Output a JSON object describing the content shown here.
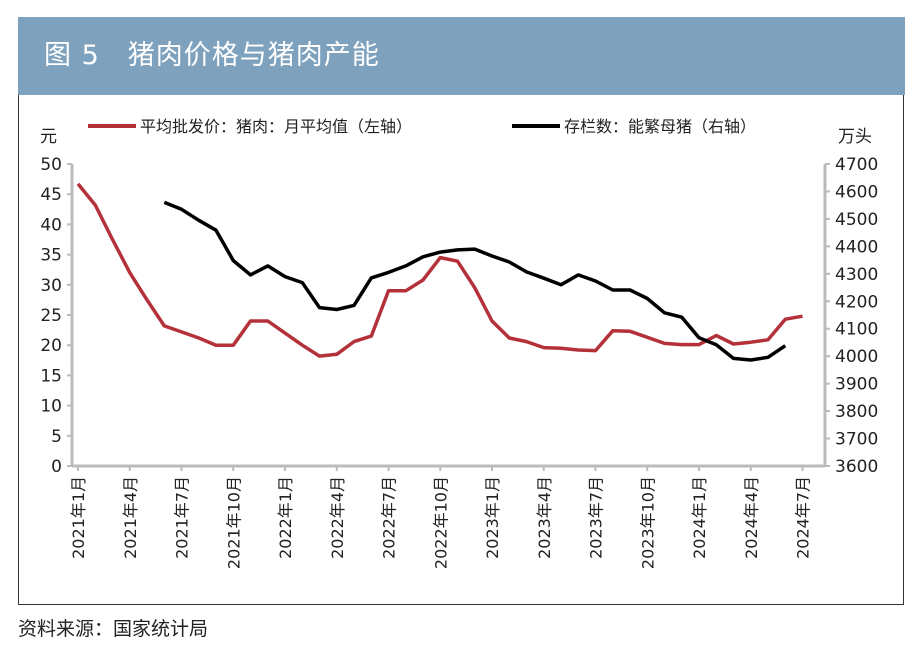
{
  "title": "图 5　猪肉价格与猪肉产能",
  "source": "资料来源：国家统计局",
  "chart_data": {
    "type": "line",
    "left_unit": "元",
    "right_unit": "万头",
    "left_ylim": [
      0,
      50
    ],
    "right_ylim": [
      3600,
      4700
    ],
    "left_ticks": [
      0,
      5,
      10,
      15,
      20,
      25,
      30,
      35,
      40,
      45,
      50
    ],
    "right_ticks": [
      3600,
      3700,
      3800,
      3900,
      4000,
      4100,
      4200,
      4300,
      4400,
      4500,
      4600,
      4700
    ],
    "x_tick_labels": [
      "2021年1月",
      "2021年4月",
      "2021年7月",
      "2021年10月",
      "2022年1月",
      "2022年4月",
      "2022年7月",
      "2022年10月",
      "2023年1月",
      "2023年4月",
      "2023年7月",
      "2023年10月",
      "2024年1月",
      "2024年4月",
      "2024年7月"
    ],
    "legend_placement": "top",
    "grid": false,
    "series": [
      {
        "name": "平均批发价：猪肉：月平均值（左轴）",
        "axis": "left",
        "color": "#b5313a",
        "start": "2021-01",
        "values": [
          46.7,
          43.2,
          37.5,
          32,
          27.5,
          23.2,
          22.2,
          21.2,
          20,
          20,
          24,
          24,
          22,
          20,
          18.2,
          18.5,
          20.6,
          21.5,
          29,
          29,
          30.8,
          34.5,
          33.9,
          29.5,
          24,
          21.2,
          20.6,
          19.6,
          19.5,
          19.2,
          19.1,
          22.4,
          22.3,
          21.3,
          20.3,
          20.1,
          20.1,
          21.6,
          20.2,
          20.5,
          20.9,
          24.3,
          24.8
        ]
      },
      {
        "name": "存栏数：能繁母猪（右轴）",
        "axis": "right",
        "color": "#000000",
        "start": "2021-06",
        "values": [
          4560,
          4535,
          4495,
          4459,
          4348,
          4296,
          4329,
          4290,
          4268,
          4177,
          4170,
          4185,
          4285,
          4305,
          4329,
          4362,
          4379,
          4387,
          4390,
          4365,
          4343,
          4307,
          4284,
          4260,
          4296,
          4274,
          4241,
          4241,
          4210,
          4158,
          4142,
          4067,
          4042,
          3992,
          3986,
          3996,
          4038
        ]
      }
    ]
  }
}
